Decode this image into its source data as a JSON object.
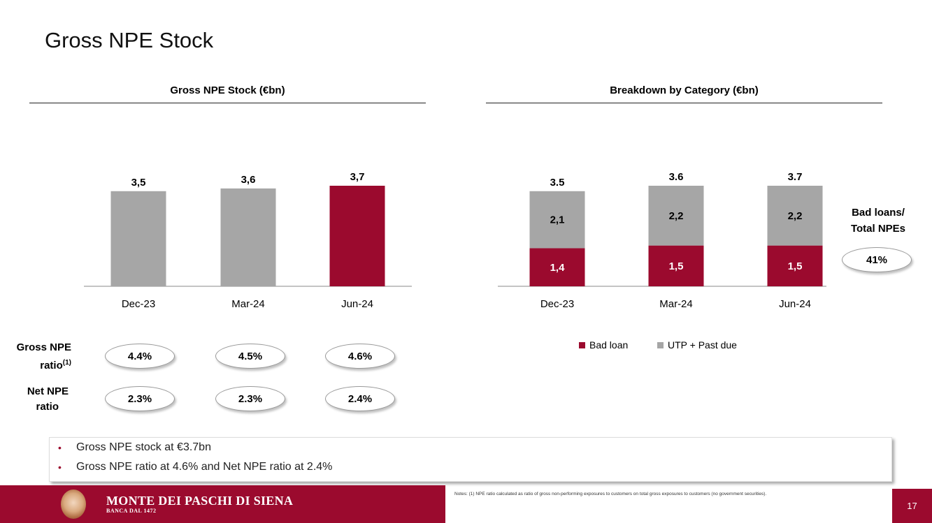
{
  "page": {
    "title": "Gross NPE Stock",
    "page_number": "17"
  },
  "colors": {
    "accent": "#9b0a2e",
    "grey": "#a6a6a6"
  },
  "left_panel": {
    "title": "Gross NPE Stock (€bn)",
    "ratios": {
      "gross_label_main": "Gross NPE",
      "gross_label_line2": "ratio",
      "gross_label_sup": "(1)",
      "gross_values": [
        "4.4%",
        "4.5%",
        "4.6%"
      ],
      "net_label_line1": "Net NPE",
      "net_label_line2": "ratio",
      "net_values": [
        "2.3%",
        "2.3%",
        "2.4%"
      ]
    }
  },
  "right_panel": {
    "title": "Breakdown by Category (€bn)",
    "side_label_line1": "Bad loans/",
    "side_label_line2": "Total NPEs",
    "side_value": "41%"
  },
  "chart_data": [
    {
      "type": "bar",
      "title": "Gross NPE Stock (€bn)",
      "categories": [
        "Dec-23",
        "Mar-24",
        "Jun-24"
      ],
      "values": [
        3.5,
        3.6,
        3.7
      ],
      "data_labels": [
        "3,5",
        "3,6",
        "3,7"
      ],
      "highlight_index": 2,
      "colors": [
        "#a6a6a6",
        "#a6a6a6",
        "#9b0a2e"
      ]
    },
    {
      "type": "bar",
      "stacked": true,
      "title": "Breakdown by Category (€bn)",
      "categories": [
        "Dec-23",
        "Mar-24",
        "Jun-24"
      ],
      "series": [
        {
          "name": "Bad loan",
          "values": [
            1.4,
            1.5,
            1.5
          ],
          "labels": [
            "1,4",
            "1,5",
            "1,5"
          ],
          "color": "#9b0a2e"
        },
        {
          "name": "UTP + Past due",
          "values": [
            2.1,
            2.2,
            2.2
          ],
          "labels": [
            "2,1",
            "2,2",
            "2,2"
          ],
          "color": "#a6a6a6"
        }
      ],
      "totals": [
        3.5,
        3.6,
        3.7
      ],
      "total_labels": [
        "3.5",
        "3.6",
        "3.7"
      ],
      "legend": "bottom"
    }
  ],
  "callout": {
    "bullets": [
      "Gross NPE stock at €3.7bn",
      "Gross NPE ratio at 4.6% and Net NPE ratio at 2.4%"
    ]
  },
  "footer": {
    "brand": "MONTE DEI PASCHI DI SIENA",
    "brand_sub": "BANCA DAL 1472",
    "notes": "Notes: (1) NPE ratio calculated as ratio of gross non-performing exposures to customers on total gross exposures to customers (no government securities)."
  }
}
